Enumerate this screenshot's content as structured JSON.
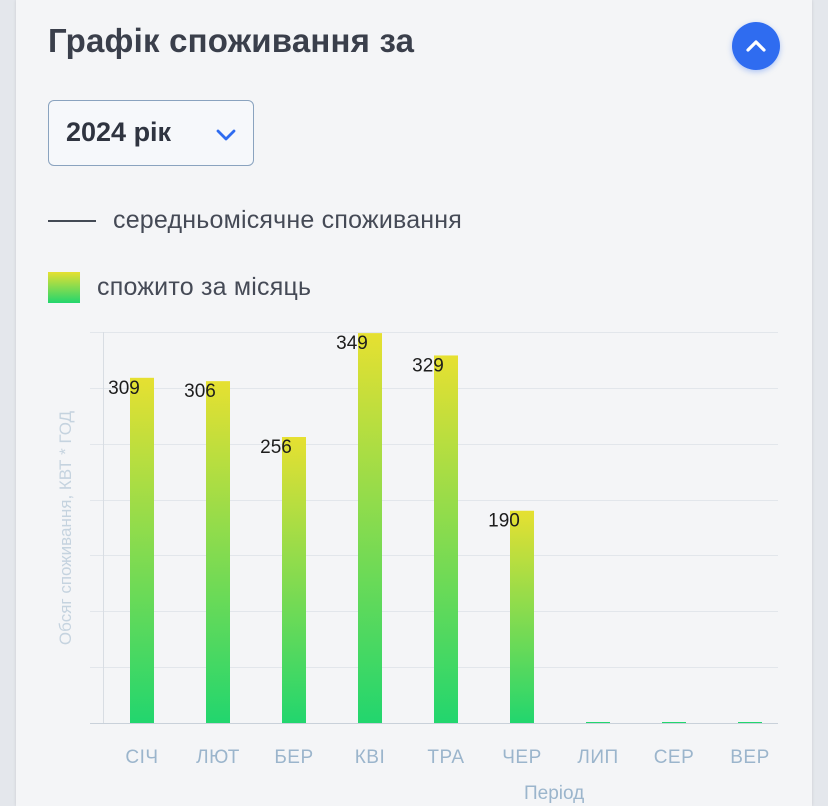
{
  "header": {
    "title": "Графік споживання за",
    "collapse_icon": "chevron-up-icon",
    "accent_color": "#2f6cf0"
  },
  "year_select": {
    "value": "2024 рік",
    "icon": "chevron-down-icon"
  },
  "legend": {
    "line_label": "середньомісячне споживання",
    "bar_label": "спожито за місяць"
  },
  "chart_data": {
    "type": "bar",
    "categories": [
      "СІЧ",
      "ЛЮТ",
      "БЕР",
      "КВІ",
      "ТРА",
      "ЧЕР",
      "ЛИП",
      "СЕР",
      "ВЕР"
    ],
    "series": [
      {
        "name": "спожито за місяць",
        "values": [
          309,
          306,
          256,
          349,
          329,
          190,
          0,
          0,
          0
        ],
        "labels": [
          "309",
          "306",
          "256",
          "349",
          "329",
          "190",
          "",
          "",
          ""
        ]
      }
    ],
    "xlabel": "Період",
    "ylabel": "Обсяг споживання, КВТ * ГОД",
    "ylim": [
      0,
      350
    ],
    "grid": true,
    "bar_gradient": [
      "#e6e031",
      "#22d66e"
    ]
  }
}
